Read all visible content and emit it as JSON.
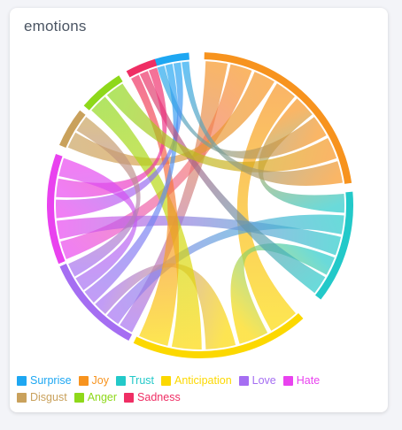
{
  "card": {
    "title": "emotions"
  },
  "chart_data": {
    "type": "chord",
    "title": "emotions",
    "names": [
      "Surprise",
      "Joy",
      "Trust",
      "Anticipation",
      "Love",
      "Hate",
      "Disgust",
      "Anger",
      "Sadness"
    ],
    "colors": [
      "#1ea7f2",
      "#f7931e",
      "#23c9c9",
      "#fcd800",
      "#a56ef2",
      "#e942ef",
      "#c9a15c",
      "#8ed81a",
      "#ef2e64"
    ],
    "arc_spans_deg": [
      [
        -17.5,
        -4.2
      ],
      [
        1.6,
        81.6
      ],
      [
        84.9,
        128.0
      ],
      [
        137.7,
        205.8
      ],
      [
        207.8,
        246.4
      ],
      [
        247.5,
        289.6
      ],
      [
        293.2,
        308.3
      ],
      [
        310.6,
        328.0
      ],
      [
        331.2,
        342.8
      ]
    ],
    "chords": [
      {
        "source": "Joy",
        "target": "Love"
      },
      {
        "source": "Joy",
        "target": "Hate"
      },
      {
        "source": "Joy",
        "target": "Disgust"
      },
      {
        "source": "Joy",
        "target": "Anticipation"
      },
      {
        "source": "Joy",
        "target": "Trust"
      },
      {
        "source": "Joy",
        "target": "Surprise"
      },
      {
        "source": "Trust",
        "target": "Love"
      },
      {
        "source": "Trust",
        "target": "Hate"
      },
      {
        "source": "Trust",
        "target": "Anticipation"
      },
      {
        "source": "Anticipation",
        "target": "Love"
      },
      {
        "source": "Anticipation",
        "target": "Anger"
      },
      {
        "source": "Anticipation",
        "target": "Sadness"
      },
      {
        "source": "Surprise",
        "target": "Love"
      },
      {
        "source": "Surprise",
        "target": "Hate"
      },
      {
        "source": "Sadness",
        "target": "Trust"
      },
      {
        "source": "Sadness",
        "target": "Hate"
      },
      {
        "source": "Anger",
        "target": "Joy"
      },
      {
        "source": "Hate",
        "target": "Love"
      },
      {
        "source": "Disgust",
        "target": "Love"
      },
      {
        "source": "Surprise",
        "target": "Joy"
      }
    ]
  }
}
